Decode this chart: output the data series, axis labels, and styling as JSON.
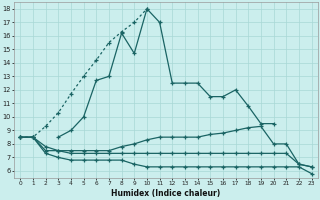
{
  "bg_color": "#cbeeed",
  "line_color": "#1a6464",
  "grid_color": "#a8d8d5",
  "xlabel": "Humidex (Indice chaleur)",
  "xlim": [
    -0.5,
    23.5
  ],
  "ylim": [
    5.5,
    18.5
  ],
  "xticks": [
    0,
    1,
    2,
    3,
    4,
    5,
    6,
    7,
    8,
    9,
    10,
    11,
    12,
    13,
    14,
    15,
    16,
    17,
    18,
    19,
    20,
    21,
    22,
    23
  ],
  "yticks": [
    6,
    7,
    8,
    9,
    10,
    11,
    12,
    13,
    14,
    15,
    16,
    17,
    18
  ],
  "dotted_line": {
    "x": [
      0,
      1,
      2,
      3,
      4,
      5,
      6,
      7,
      8,
      9,
      10
    ],
    "y": [
      8.5,
      8.5,
      9.3,
      10.3,
      11.7,
      13.0,
      14.2,
      15.5,
      16.3,
      17.0,
      18.0
    ]
  },
  "main_line": {
    "x": [
      3,
      4,
      5,
      6,
      7,
      8,
      9,
      10,
      11,
      12,
      13,
      14,
      15,
      16,
      17,
      18,
      19,
      20
    ],
    "y": [
      8.5,
      9.0,
      10.0,
      12.7,
      13.0,
      16.2,
      14.7,
      18.0,
      17.0,
      12.5,
      12.5,
      12.5,
      11.5,
      11.5,
      12.0,
      10.8,
      9.5,
      9.5
    ]
  },
  "rising_line": {
    "x": [
      0,
      1,
      2,
      3,
      4,
      5,
      6,
      7,
      8,
      9,
      10,
      11,
      12,
      13,
      14,
      15,
      16,
      17,
      18,
      19,
      20,
      21,
      22,
      23
    ],
    "y": [
      8.5,
      8.5,
      7.8,
      7.5,
      7.5,
      7.5,
      7.5,
      7.5,
      7.8,
      8.0,
      8.3,
      8.5,
      8.5,
      8.5,
      8.5,
      8.7,
      8.8,
      9.0,
      9.2,
      9.3,
      8.0,
      8.0,
      6.5,
      6.3
    ]
  },
  "flat_line": {
    "x": [
      0,
      1,
      2,
      3,
      4,
      5,
      6,
      7,
      8,
      9,
      10,
      11,
      12,
      13,
      14,
      15,
      16,
      17,
      18,
      19,
      20,
      21,
      22,
      23
    ],
    "y": [
      8.5,
      8.5,
      7.5,
      7.5,
      7.3,
      7.3,
      7.3,
      7.3,
      7.3,
      7.3,
      7.3,
      7.3,
      7.3,
      7.3,
      7.3,
      7.3,
      7.3,
      7.3,
      7.3,
      7.3,
      7.3,
      7.3,
      6.5,
      6.3
    ]
  },
  "bottom_line": {
    "x": [
      0,
      1,
      2,
      3,
      4,
      5,
      6,
      7,
      8,
      9,
      10,
      11,
      12,
      13,
      14,
      15,
      16,
      17,
      18,
      19,
      20,
      21,
      22,
      23
    ],
    "y": [
      8.5,
      8.5,
      7.3,
      7.0,
      6.8,
      6.8,
      6.8,
      6.8,
      6.8,
      6.5,
      6.3,
      6.3,
      6.3,
      6.3,
      6.3,
      6.3,
      6.3,
      6.3,
      6.3,
      6.3,
      6.3,
      6.3,
      6.3,
      5.8
    ]
  }
}
